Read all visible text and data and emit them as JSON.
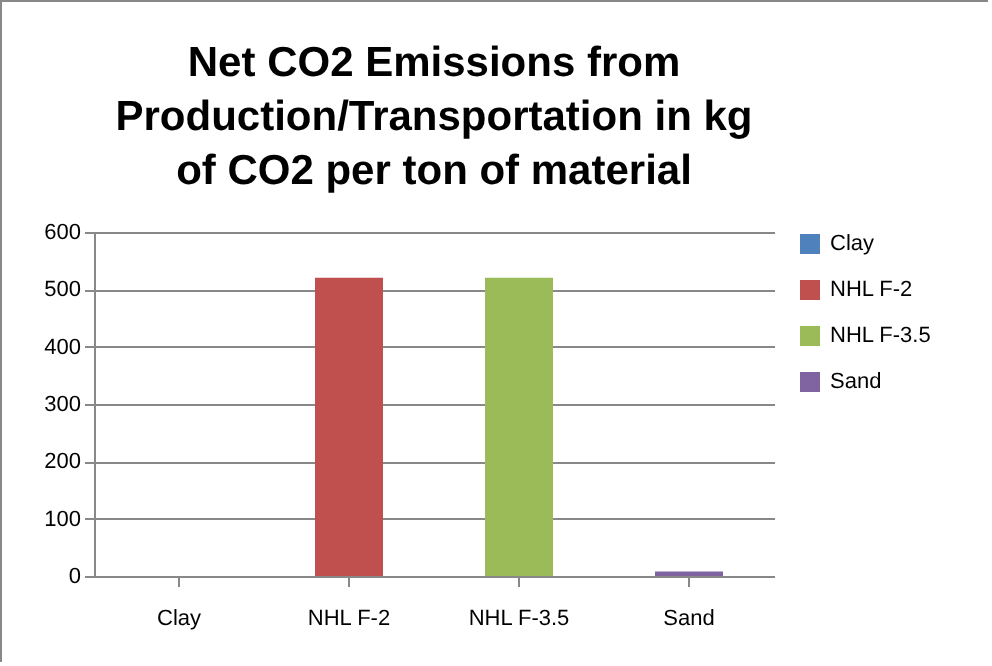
{
  "chart_data": {
    "type": "bar",
    "title": "Net CO2 Emissions from Production/Transportation in kg of CO2 per ton of material",
    "categories": [
      "Clay",
      "NHL F-2",
      "NHL F-3.5",
      "Sand"
    ],
    "series": [
      {
        "name": "Clay",
        "color": "#4f81bd",
        "values": [
          0,
          null,
          null,
          null
        ]
      },
      {
        "name": "NHL F-2",
        "color": "#c0504d",
        "values": [
          null,
          520,
          null,
          null
        ]
      },
      {
        "name": "NHL F-3.5",
        "color": "#9bbb59",
        "values": [
          null,
          null,
          520,
          null
        ]
      },
      {
        "name": "Sand",
        "color": "#8064a2",
        "values": [
          null,
          null,
          null,
          8
        ]
      }
    ],
    "ylim": [
      0,
      600
    ],
    "yticks": [
      0,
      100,
      200,
      300,
      400,
      500,
      600
    ],
    "grid": "y",
    "legend": "right"
  }
}
